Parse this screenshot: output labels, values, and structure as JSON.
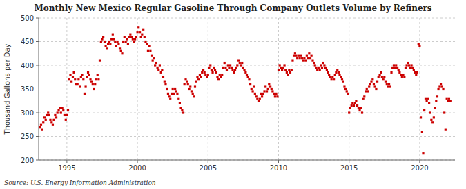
{
  "chart_data": {
    "type": "scatter",
    "title": "Monthly New Mexico Regular Gasoline Through Company Outlets Volume by Refiners",
    "y_label": "Thousand Gallons per Day",
    "annotations": [
      "Source: U.S. Energy Information Administration"
    ],
    "color": "#CC0000",
    "marker": "square",
    "grid": true,
    "xlim": [
      1993.0,
      2022.5
    ],
    "ylim": [
      200,
      500
    ],
    "xticks": [
      1995,
      2000,
      2005,
      2010,
      2015,
      2020
    ],
    "yticks": [
      200,
      250,
      300,
      350,
      400,
      450,
      500
    ],
    "x": [
      1993.08,
      1993.17,
      1993.25,
      1993.33,
      1993.42,
      1993.5,
      1993.58,
      1993.67,
      1993.75,
      1993.83,
      1993.92,
      1994.0,
      1994.08,
      1994.17,
      1994.25,
      1994.33,
      1994.42,
      1994.5,
      1994.58,
      1994.67,
      1994.75,
      1994.83,
      1994.92,
      1995.0,
      1995.08,
      1995.17,
      1995.25,
      1995.33,
      1995.42,
      1995.5,
      1995.58,
      1995.67,
      1995.75,
      1995.83,
      1995.92,
      1996.0,
      1996.08,
      1996.17,
      1996.25,
      1996.33,
      1996.42,
      1996.5,
      1996.58,
      1996.67,
      1996.75,
      1996.83,
      1996.92,
      1997.0,
      1997.08,
      1997.17,
      1997.25,
      1997.33,
      1997.42,
      1997.5,
      1997.58,
      1997.67,
      1997.75,
      1997.83,
      1997.92,
      1998.0,
      1998.08,
      1998.17,
      1998.25,
      1998.33,
      1998.42,
      1998.5,
      1998.58,
      1998.67,
      1998.75,
      1998.83,
      1998.92,
      1999.0,
      1999.08,
      1999.17,
      1999.25,
      1999.33,
      1999.42,
      1999.5,
      1999.58,
      1999.67,
      1999.75,
      1999.83,
      1999.92,
      2000.0,
      2000.08,
      2000.17,
      2000.25,
      2000.33,
      2000.42,
      2000.5,
      2000.58,
      2000.67,
      2000.75,
      2000.83,
      2000.92,
      2001.0,
      2001.08,
      2001.17,
      2001.25,
      2001.33,
      2001.42,
      2001.5,
      2001.58,
      2001.67,
      2001.75,
      2001.83,
      2001.92,
      2002.0,
      2002.08,
      2002.17,
      2002.25,
      2002.33,
      2002.42,
      2002.5,
      2002.58,
      2002.67,
      2002.75,
      2002.83,
      2002.92,
      2003.0,
      2003.08,
      2003.17,
      2003.25,
      2003.33,
      2003.42,
      2003.5,
      2003.58,
      2003.67,
      2003.75,
      2003.83,
      2003.92,
      2004.0,
      2004.08,
      2004.17,
      2004.25,
      2004.33,
      2004.42,
      2004.5,
      2004.58,
      2004.67,
      2004.75,
      2004.83,
      2004.92,
      2005.0,
      2005.08,
      2005.17,
      2005.25,
      2005.33,
      2005.42,
      2005.5,
      2005.58,
      2005.67,
      2005.75,
      2005.83,
      2005.92,
      2006.0,
      2006.08,
      2006.17,
      2006.25,
      2006.33,
      2006.42,
      2006.5,
      2006.58,
      2006.67,
      2006.75,
      2006.83,
      2006.92,
      2007.0,
      2007.08,
      2007.17,
      2007.25,
      2007.33,
      2007.42,
      2007.5,
      2007.58,
      2007.67,
      2007.75,
      2007.83,
      2007.92,
      2008.0,
      2008.08,
      2008.17,
      2008.25,
      2008.33,
      2008.42,
      2008.5,
      2008.58,
      2008.67,
      2008.75,
      2008.83,
      2008.92,
      2009.0,
      2009.08,
      2009.17,
      2009.25,
      2009.33,
      2009.42,
      2009.5,
      2009.58,
      2009.67,
      2009.75,
      2009.83,
      2009.92,
      2010.0,
      2010.08,
      2010.17,
      2010.25,
      2010.33,
      2010.42,
      2010.5,
      2010.58,
      2010.67,
      2010.75,
      2010.83,
      2010.92,
      2011.0,
      2011.08,
      2011.17,
      2011.25,
      2011.33,
      2011.42,
      2011.5,
      2011.58,
      2011.67,
      2011.75,
      2011.83,
      2011.92,
      2012.0,
      2012.08,
      2012.17,
      2012.25,
      2012.33,
      2012.42,
      2012.5,
      2012.58,
      2012.67,
      2012.75,
      2012.83,
      2012.92,
      2013.0,
      2013.08,
      2013.17,
      2013.25,
      2013.33,
      2013.42,
      2013.5,
      2013.58,
      2013.67,
      2013.75,
      2013.83,
      2013.92,
      2014.0,
      2014.08,
      2014.17,
      2014.25,
      2014.33,
      2014.42,
      2014.5,
      2014.58,
      2014.67,
      2014.75,
      2014.83,
      2014.92,
      2015.0,
      2015.08,
      2015.17,
      2015.25,
      2015.33,
      2015.42,
      2015.5,
      2015.58,
      2015.67,
      2015.75,
      2015.83,
      2015.92,
      2016.0,
      2016.08,
      2016.17,
      2016.25,
      2016.33,
      2016.42,
      2016.5,
      2016.58,
      2016.67,
      2016.75,
      2016.83,
      2016.92,
      2017.0,
      2017.08,
      2017.17,
      2017.25,
      2017.33,
      2017.42,
      2017.5,
      2017.58,
      2017.67,
      2017.75,
      2017.83,
      2017.92,
      2018.0,
      2018.08,
      2018.17,
      2018.25,
      2018.33,
      2018.42,
      2018.5,
      2018.58,
      2018.67,
      2018.75,
      2018.83,
      2018.92,
      2019.0,
      2019.08,
      2019.17,
      2019.25,
      2019.33,
      2019.42,
      2019.5,
      2019.58,
      2019.67,
      2019.75,
      2019.83,
      2019.92,
      2020.0,
      2020.08,
      2020.17,
      2020.25,
      2020.33,
      2020.42,
      2020.5,
      2020.58,
      2020.67,
      2020.75,
      2020.83,
      2020.92,
      2021.0,
      2021.08,
      2021.17,
      2021.25,
      2021.33,
      2021.42,
      2021.5,
      2021.58,
      2021.67,
      2021.75,
      2021.83,
      2021.92,
      2022.0,
      2022.08,
      2022.17
    ],
    "values": [
      270,
      275,
      265,
      280,
      290,
      285,
      295,
      300,
      295,
      285,
      280,
      275,
      285,
      295,
      290,
      300,
      305,
      310,
      300,
      310,
      305,
      295,
      285,
      295,
      305,
      370,
      380,
      365,
      375,
      385,
      370,
      360,
      360,
      370,
      355,
      375,
      380,
      370,
      340,
      355,
      375,
      385,
      380,
      370,
      365,
      360,
      350,
      360,
      370,
      380,
      370,
      410,
      450,
      455,
      460,
      450,
      440,
      435,
      445,
      450,
      445,
      455,
      465,
      455,
      450,
      440,
      450,
      445,
      435,
      430,
      425,
      450,
      460,
      450,
      455,
      445,
      460,
      465,
      460,
      455,
      450,
      455,
      460,
      470,
      480,
      470,
      460,
      465,
      475,
      460,
      450,
      445,
      430,
      440,
      430,
      420,
      410,
      415,
      400,
      405,
      395,
      390,
      400,
      385,
      390,
      375,
      365,
      360,
      350,
      340,
      335,
      330,
      340,
      350,
      340,
      350,
      345,
      340,
      330,
      320,
      310,
      305,
      300,
      360,
      370,
      365,
      360,
      350,
      355,
      345,
      340,
      335,
      355,
      365,
      375,
      370,
      380,
      375,
      385,
      390,
      385,
      380,
      375,
      380,
      395,
      400,
      390,
      385,
      395,
      390,
      385,
      375,
      370,
      380,
      375,
      380,
      395,
      405,
      395,
      390,
      400,
      395,
      400,
      395,
      390,
      385,
      390,
      395,
      400,
      410,
      405,
      400,
      405,
      395,
      390,
      385,
      380,
      375,
      370,
      360,
      350,
      345,
      355,
      340,
      335,
      330,
      325,
      330,
      340,
      335,
      340,
      345,
      355,
      345,
      350,
      360,
      355,
      350,
      345,
      340,
      335,
      340,
      335,
      390,
      400,
      395,
      390,
      395,
      400,
      390,
      385,
      380,
      390,
      385,
      390,
      410,
      420,
      425,
      420,
      415,
      420,
      415,
      420,
      415,
      410,
      415,
      410,
      420,
      415,
      425,
      415,
      420,
      410,
      405,
      400,
      395,
      390,
      395,
      390,
      400,
      395,
      405,
      400,
      395,
      390,
      385,
      380,
      375,
      370,
      375,
      370,
      380,
      385,
      390,
      385,
      380,
      375,
      370,
      365,
      355,
      350,
      345,
      340,
      300,
      310,
      315,
      320,
      315,
      320,
      325,
      315,
      310,
      305,
      310,
      300,
      330,
      335,
      345,
      350,
      345,
      355,
      360,
      365,
      370,
      360,
      355,
      350,
      365,
      375,
      380,
      385,
      375,
      370,
      375,
      365,
      360,
      355,
      360,
      355,
      385,
      395,
      400,
      395,
      400,
      395,
      390,
      385,
      380,
      375,
      380,
      375,
      395,
      400,
      405,
      400,
      395,
      400,
      395,
      390,
      385,
      380,
      385,
      445,
      440,
      290,
      260,
      215,
      305,
      330,
      325,
      330,
      320,
      300,
      285,
      280,
      290,
      310,
      325,
      335,
      350,
      355,
      360,
      355,
      350,
      300,
      265,
      330,
      325,
      330,
      325
    ]
  }
}
